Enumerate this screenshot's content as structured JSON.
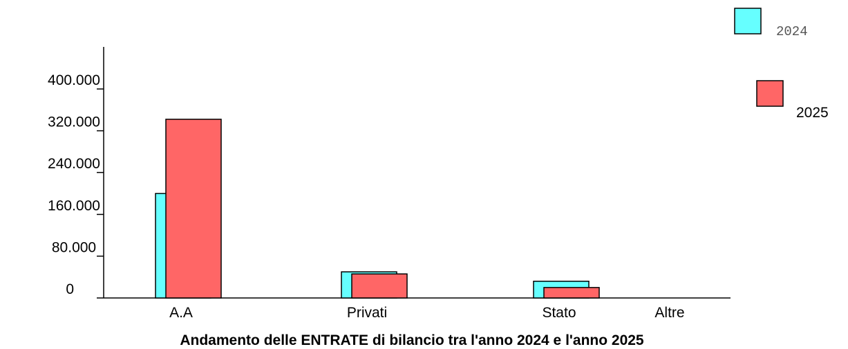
{
  "chart_data": {
    "type": "bar",
    "title": "Andamento delle ENTRATE di bilancio tra l'anno 2024 e l'anno 2025",
    "categories": [
      "A.A",
      "Privati",
      "Stato",
      "Altre"
    ],
    "series": [
      {
        "name": "2024",
        "color": "#66ffff",
        "values": [
          200000,
          50000,
          32000,
          0
        ]
      },
      {
        "name": "2025",
        "color": "#ff6666",
        "values": [
          342000,
          46000,
          20000,
          0
        ]
      }
    ],
    "yticks": [
      "0",
      "80.000",
      "160.000",
      "240.000",
      "320.000",
      "400.000"
    ],
    "ylim": [
      0,
      400000
    ],
    "grid": false,
    "legend_position": "right"
  }
}
